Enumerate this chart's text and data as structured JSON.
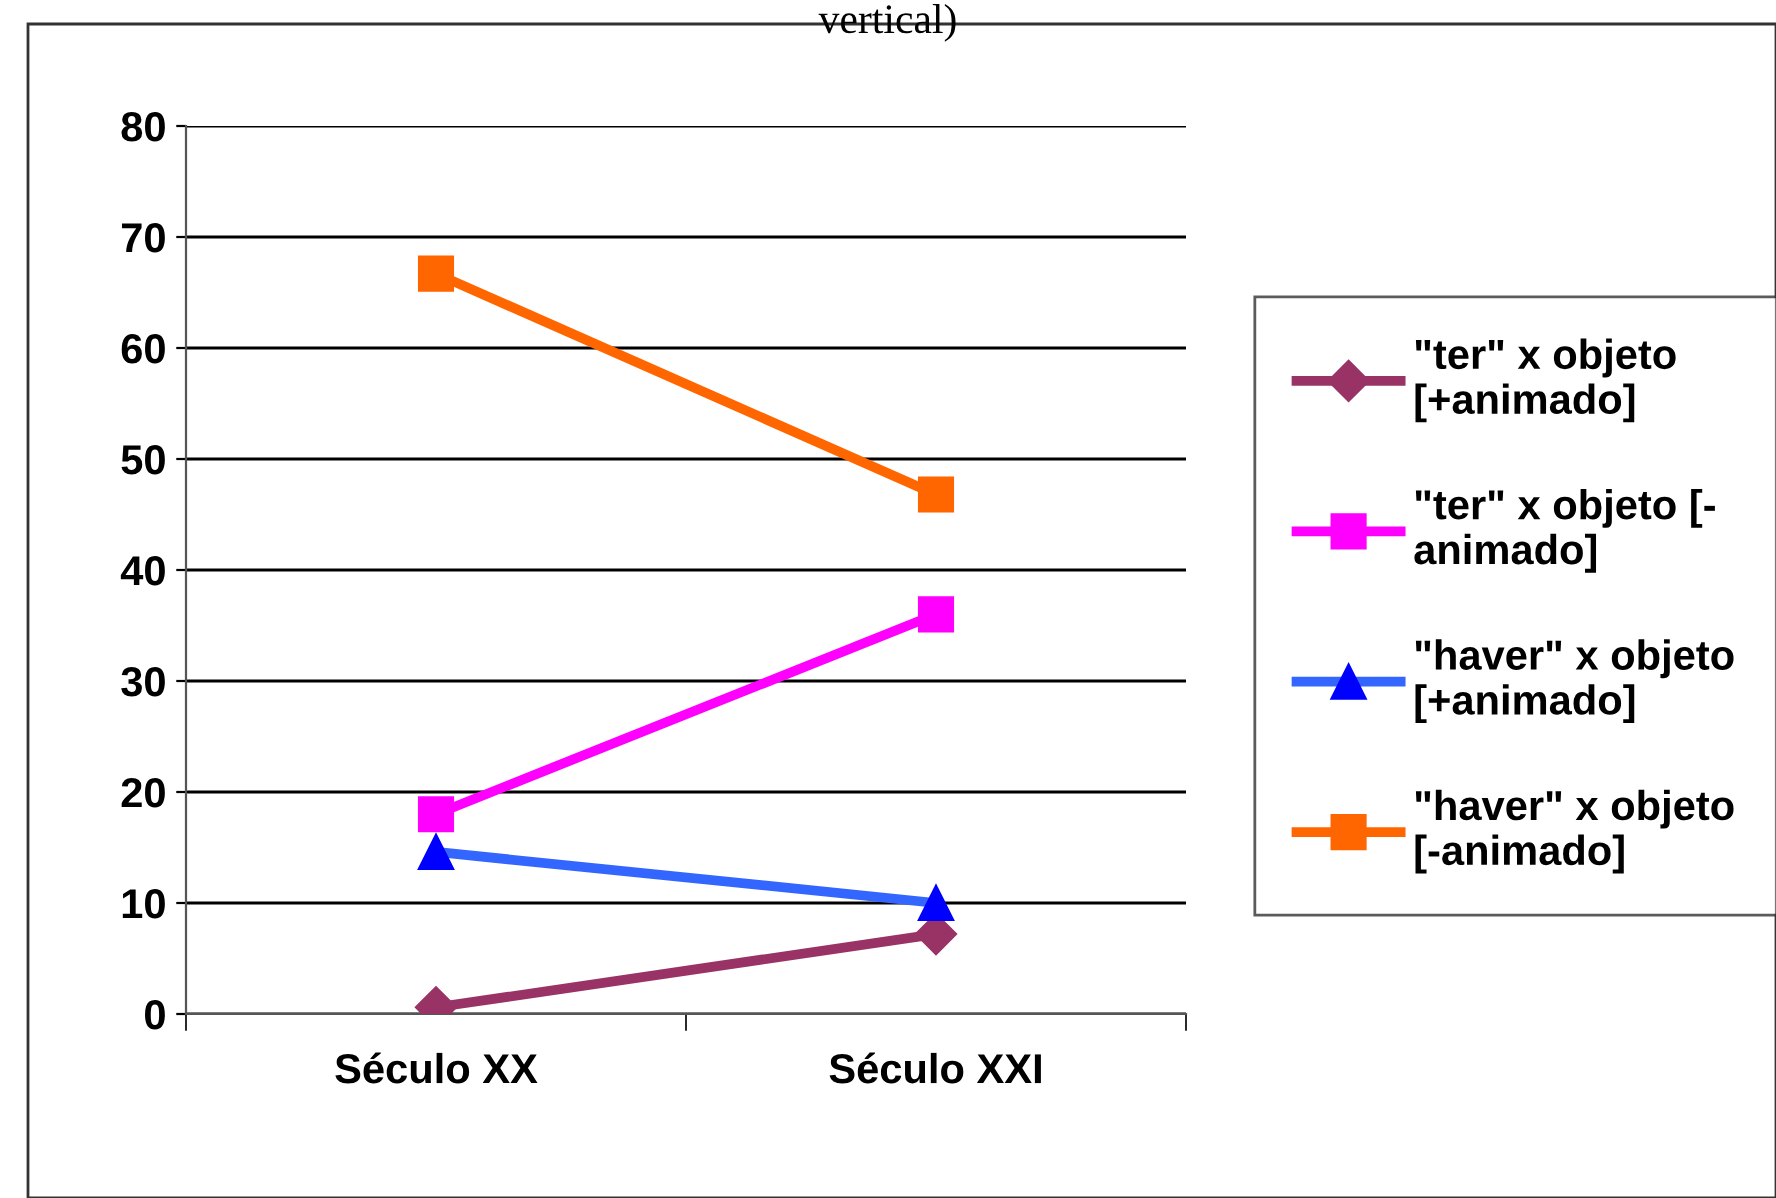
{
  "chart_data": {
    "type": "line",
    "title": "vertical)",
    "categories": [
      "Século XX",
      "Século XXI"
    ],
    "series": [
      {
        "name": "\"ter\" x objeto\n[+animado]",
        "color": "#993366",
        "marker": "diamond",
        "values": [
          0.6,
          7.2
        ]
      },
      {
        "name": "\"ter\" x objeto [-\nanimado]",
        "color": "#ff00ff",
        "marker": "square",
        "values": [
          18,
          36
        ]
      },
      {
        "name": "\"haver\" x objeto\n[+animado]",
        "color": "#3366ff",
        "marker": "triangle",
        "values": [
          14.6,
          10
        ]
      },
      {
        "name": "\"haver\" x objeto\n[-animado]",
        "color": "#ff6600",
        "marker": "square",
        "values": [
          66.7,
          46.8
        ]
      }
    ],
    "ylim": [
      0,
      80
    ],
    "yticks": [
      0,
      10,
      20,
      30,
      40,
      50,
      60,
      70,
      80
    ],
    "grid": "y",
    "legend": "right"
  }
}
